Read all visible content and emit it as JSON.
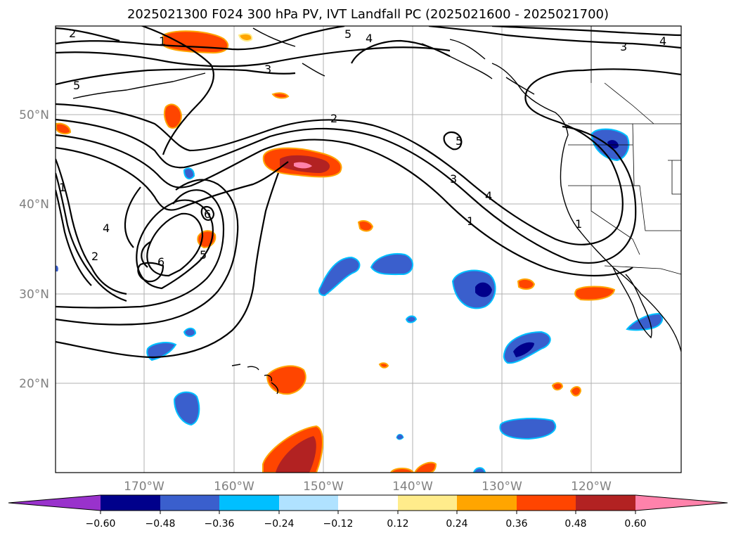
{
  "title": "2025021300 F024 300 hPa PV, IVT Landfall PC (2025021600 - 2025021700)",
  "map": {
    "lat_labels": [
      "50°N",
      "40°N",
      "30°N",
      "20°N"
    ],
    "lon_labels": [
      "170°W",
      "160°W",
      "150°W",
      "140°W",
      "130°W",
      "120°W"
    ],
    "gridline_color": "#b0b0b0",
    "label_color": "#808080"
  },
  "contour_labels": [
    "2",
    "1",
    "5",
    "4",
    "3",
    "3",
    "4",
    "5",
    "2",
    "5",
    "1",
    "1",
    "4",
    "2",
    "6",
    "5",
    "6",
    "3",
    "4",
    "1"
  ],
  "colorbar": {
    "tick_labels": [
      "−0.60",
      "−0.48",
      "−0.36",
      "−0.24",
      "−0.12",
      "0.12",
      "0.24",
      "0.36",
      "0.48",
      "0.60"
    ],
    "colors": [
      "#9932cc",
      "#00008b",
      "#3a5fcd",
      "#00bfff",
      "#b0e2ff",
      "#ffffff",
      "#ffec8b",
      "#ffa500",
      "#ff4500",
      "#b22222",
      "#ff82ab"
    ]
  },
  "anomaly_colors": {
    "negative_strong": "#00008b",
    "negative": "#3a5fcd",
    "negative_weak": "#00bfff",
    "positive_weak": "#ffec8b",
    "positive": "#ff4500",
    "positive_strong": "#b22222",
    "positive_max": "#ff82ab"
  }
}
